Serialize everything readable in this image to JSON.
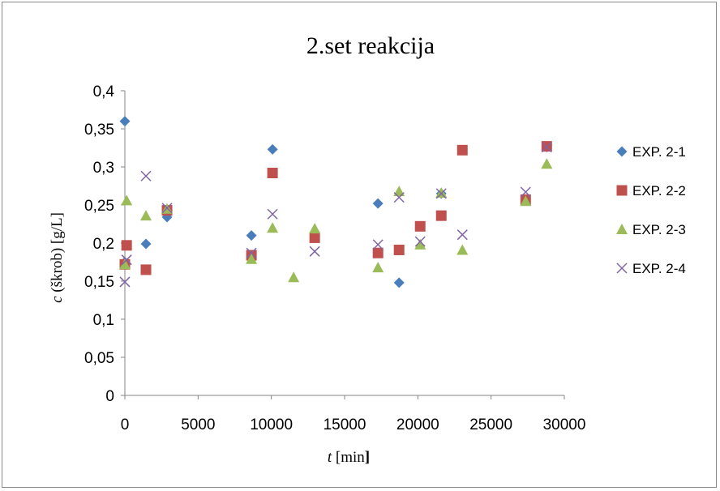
{
  "chart_data": {
    "type": "scatter",
    "title": "2.set reakcija",
    "xlabel": {
      "var": "t",
      "unit": " [min",
      "bracket": "]"
    },
    "ylabel": {
      "var": "c",
      "rest": " (škrob) [g/L]"
    },
    "xlim": [
      0,
      30000
    ],
    "ylim": [
      0,
      0.4
    ],
    "x_ticks": [
      0,
      5000,
      10000,
      15000,
      20000,
      25000,
      30000
    ],
    "x_tick_labels": [
      "0",
      "5000",
      "10000",
      "15000",
      "20000",
      "25000",
      "30000"
    ],
    "y_ticks": [
      0,
      0.05,
      0.1,
      0.15,
      0.2,
      0.25,
      0.3,
      0.35,
      0.4
    ],
    "y_tick_labels": [
      "0",
      "0,05",
      "0,1",
      "0,15",
      "0,2",
      "0,25",
      "0,3",
      "0,35",
      "0,4"
    ],
    "grid": false,
    "legend_position": "right",
    "series": [
      {
        "name": "EXP. 2-1",
        "marker": "diamond",
        "color": "#4a7ebb",
        "points": [
          [
            0,
            0.36
          ],
          [
            0,
            0.175
          ],
          [
            1440,
            0.199
          ],
          [
            2880,
            0.234
          ],
          [
            8640,
            0.21
          ],
          [
            10080,
            0.323
          ],
          [
            17280,
            0.252
          ],
          [
            18720,
            0.148
          ],
          [
            21600,
            0.265
          ],
          [
            28800,
            0.326
          ]
        ]
      },
      {
        "name": "EXP. 2-2",
        "marker": "square",
        "color": "#c0504d",
        "points": [
          [
            0,
            0.172
          ],
          [
            120,
            0.197
          ],
          [
            1440,
            0.165
          ],
          [
            2880,
            0.243
          ],
          [
            8640,
            0.184
          ],
          [
            10080,
            0.292
          ],
          [
            12960,
            0.207
          ],
          [
            17280,
            0.187
          ],
          [
            18720,
            0.191
          ],
          [
            20160,
            0.222
          ],
          [
            21600,
            0.236
          ],
          [
            23040,
            0.322
          ],
          [
            27360,
            0.257
          ],
          [
            28800,
            0.327
          ]
        ]
      },
      {
        "name": "EXP. 2-3",
        "marker": "triangle",
        "color": "#9bbb59",
        "points": [
          [
            0,
            0.172
          ],
          [
            120,
            0.256
          ],
          [
            1440,
            0.236
          ],
          [
            2880,
            0.245
          ],
          [
            8640,
            0.179
          ],
          [
            10080,
            0.22
          ],
          [
            11520,
            0.155
          ],
          [
            12960,
            0.219
          ],
          [
            17280,
            0.168
          ],
          [
            18720,
            0.268
          ],
          [
            20160,
            0.198
          ],
          [
            21600,
            0.266
          ],
          [
            23040,
            0.191
          ],
          [
            27360,
            0.255
          ],
          [
            28800,
            0.304
          ]
        ]
      },
      {
        "name": "EXP. 2-4",
        "marker": "x",
        "color": "#8064a2",
        "points": [
          [
            0,
            0.149
          ],
          [
            120,
            0.178
          ],
          [
            1440,
            0.288
          ],
          [
            2880,
            0.246
          ],
          [
            8640,
            0.187
          ],
          [
            10080,
            0.238
          ],
          [
            12960,
            0.189
          ],
          [
            17280,
            0.198
          ],
          [
            18720,
            0.26
          ],
          [
            20160,
            0.202
          ],
          [
            21600,
            0.265
          ],
          [
            23040,
            0.211
          ],
          [
            27360,
            0.267
          ],
          [
            28800,
            0.326
          ]
        ]
      }
    ]
  }
}
